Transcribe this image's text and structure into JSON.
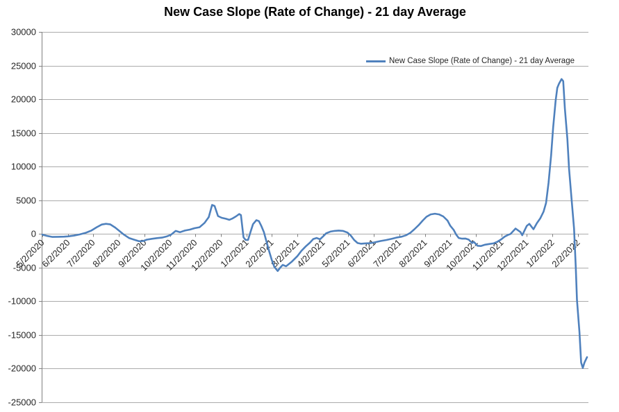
{
  "chart_data": {
    "type": "line",
    "title": "New Case Slope (Rate of Change) - 21 day Average",
    "grid": true,
    "legend_position": "top-right-inside",
    "x_axis": {
      "tick_labels": [
        "5/2/2020",
        "6/2/2020",
        "7/2/2020",
        "8/2/2020",
        "9/2/2020",
        "10/2/2020",
        "11/2/2020",
        "12/2/2020",
        "1/2/2021",
        "2/2/2021",
        "3/2/2021",
        "4/2/2021",
        "5/2/2021",
        "6/2/2021",
        "7/2/2021",
        "8/2/2021",
        "9/2/2021",
        "10/2/2021",
        "11/2/2021",
        "12/2/2021",
        "1/2/2022",
        "2/2/2022"
      ],
      "tick_dates": [
        "2020-05-02",
        "2020-06-02",
        "2020-07-02",
        "2020-08-02",
        "2020-09-02",
        "2020-10-02",
        "2020-11-02",
        "2020-12-02",
        "2021-01-02",
        "2021-02-02",
        "2021-03-02",
        "2021-04-02",
        "2021-05-02",
        "2021-06-02",
        "2021-07-02",
        "2021-08-02",
        "2021-09-02",
        "2021-10-02",
        "2021-11-02",
        "2021-12-02",
        "2022-01-02",
        "2022-02-02"
      ],
      "label_rotation_deg": 45
    },
    "y_axis": {
      "min": -25000,
      "max": 30000,
      "step": 5000,
      "tick_labels": [
        "30000",
        "25000",
        "20000",
        "15000",
        "10000",
        "5000",
        "0",
        "-5000",
        "-10000",
        "-15000",
        "-20000",
        "-25000"
      ],
      "tick_values": [
        30000,
        25000,
        20000,
        15000,
        10000,
        5000,
        0,
        -5000,
        -10000,
        -15000,
        -20000,
        -25000
      ]
    },
    "series": [
      {
        "name": "New Case Slope (Rate of Change) - 21 day Average",
        "color": "#4f81bd",
        "points": [
          [
            "2020-05-02",
            -100
          ],
          [
            "2020-05-08",
            -300
          ],
          [
            "2020-05-14",
            -450
          ],
          [
            "2020-05-21",
            -420
          ],
          [
            "2020-05-28",
            -400
          ],
          [
            "2020-06-02",
            -360
          ],
          [
            "2020-06-09",
            -250
          ],
          [
            "2020-06-16",
            -80
          ],
          [
            "2020-06-23",
            150
          ],
          [
            "2020-06-30",
            500
          ],
          [
            "2020-07-06",
            1000
          ],
          [
            "2020-07-12",
            1400
          ],
          [
            "2020-07-17",
            1500
          ],
          [
            "2020-07-22",
            1430
          ],
          [
            "2020-07-28",
            950
          ],
          [
            "2020-08-02",
            500
          ],
          [
            "2020-08-08",
            -100
          ],
          [
            "2020-08-14",
            -600
          ],
          [
            "2020-08-20",
            -850
          ],
          [
            "2020-08-26",
            -1080
          ],
          [
            "2020-08-31",
            -1050
          ],
          [
            "2020-09-05",
            -850
          ],
          [
            "2020-09-11",
            -720
          ],
          [
            "2020-09-17",
            -620
          ],
          [
            "2020-09-23",
            -550
          ],
          [
            "2020-09-29",
            -350
          ],
          [
            "2020-10-03",
            -150
          ],
          [
            "2020-10-09",
            450
          ],
          [
            "2020-10-14",
            250
          ],
          [
            "2020-10-20",
            500
          ],
          [
            "2020-10-26",
            650
          ],
          [
            "2020-11-01",
            850
          ],
          [
            "2020-11-07",
            1000
          ],
          [
            "2020-11-13",
            1650
          ],
          [
            "2020-11-18",
            2500
          ],
          [
            "2020-11-22",
            4300
          ],
          [
            "2020-11-25",
            4150
          ],
          [
            "2020-11-29",
            2650
          ],
          [
            "2020-12-03",
            2400
          ],
          [
            "2020-12-08",
            2250
          ],
          [
            "2020-12-12",
            2100
          ],
          [
            "2020-12-16",
            2300
          ],
          [
            "2020-12-20",
            2600
          ],
          [
            "2020-12-24",
            2950
          ],
          [
            "2020-12-26",
            2800
          ],
          [
            "2020-12-29",
            -500
          ],
          [
            "2021-01-01",
            -880
          ],
          [
            "2021-01-04",
            -900
          ],
          [
            "2021-01-07",
            300
          ],
          [
            "2021-01-10",
            1450
          ],
          [
            "2021-01-14",
            2050
          ],
          [
            "2021-01-17",
            1900
          ],
          [
            "2021-01-20",
            1150
          ],
          [
            "2021-01-23",
            250
          ],
          [
            "2021-01-26",
            -1100
          ],
          [
            "2021-01-29",
            -2500
          ],
          [
            "2021-02-02",
            -3900
          ],
          [
            "2021-02-05",
            -4900
          ],
          [
            "2021-02-09",
            -5500
          ],
          [
            "2021-02-12",
            -5000
          ],
          [
            "2021-02-15",
            -4600
          ],
          [
            "2021-02-19",
            -4800
          ],
          [
            "2021-02-22",
            -4500
          ],
          [
            "2021-02-26",
            -4100
          ],
          [
            "2021-03-02",
            -3300
          ],
          [
            "2021-03-07",
            -2500
          ],
          [
            "2021-03-12",
            -1850
          ],
          [
            "2021-03-17",
            -1300
          ],
          [
            "2021-03-21",
            -750
          ],
          [
            "2021-03-25",
            -600
          ],
          [
            "2021-03-29",
            -800
          ],
          [
            "2021-04-02",
            -400
          ],
          [
            "2021-04-06",
            100
          ],
          [
            "2021-04-11",
            350
          ],
          [
            "2021-04-16",
            450
          ],
          [
            "2021-04-21",
            500
          ],
          [
            "2021-04-26",
            450
          ],
          [
            "2021-05-01",
            200
          ],
          [
            "2021-05-05",
            -250
          ],
          [
            "2021-05-09",
            -900
          ],
          [
            "2021-05-13",
            -1350
          ],
          [
            "2021-05-17",
            -1450
          ],
          [
            "2021-05-22",
            -1400
          ],
          [
            "2021-05-28",
            -1370
          ],
          [
            "2021-06-03",
            -1250
          ],
          [
            "2021-06-10",
            -1050
          ],
          [
            "2021-06-17",
            -900
          ],
          [
            "2021-06-24",
            -700
          ],
          [
            "2021-06-30",
            -520
          ],
          [
            "2021-07-05",
            -400
          ],
          [
            "2021-07-10",
            -200
          ],
          [
            "2021-07-15",
            150
          ],
          [
            "2021-07-20",
            700
          ],
          [
            "2021-07-25",
            1300
          ],
          [
            "2021-07-30",
            2000
          ],
          [
            "2021-08-04",
            2550
          ],
          [
            "2021-08-09",
            2900
          ],
          [
            "2021-08-14",
            3000
          ],
          [
            "2021-08-19",
            2900
          ],
          [
            "2021-08-24",
            2600
          ],
          [
            "2021-08-29",
            2000
          ],
          [
            "2021-09-02",
            1200
          ],
          [
            "2021-09-06",
            600
          ],
          [
            "2021-09-09",
            -100
          ],
          [
            "2021-09-12",
            -600
          ],
          [
            "2021-09-16",
            -700
          ],
          [
            "2021-09-20",
            -680
          ],
          [
            "2021-09-24",
            -850
          ],
          [
            "2021-09-28",
            -1350
          ],
          [
            "2021-09-30",
            -1180
          ],
          [
            "2021-10-04",
            -1750
          ],
          [
            "2021-10-08",
            -1800
          ],
          [
            "2021-10-13",
            -1600
          ],
          [
            "2021-10-18",
            -1500
          ],
          [
            "2021-10-23",
            -1400
          ],
          [
            "2021-10-28",
            -1150
          ],
          [
            "2021-11-02",
            -800
          ],
          [
            "2021-11-06",
            -400
          ],
          [
            "2021-11-10",
            -150
          ],
          [
            "2021-11-13",
            0
          ],
          [
            "2021-11-19",
            800
          ],
          [
            "2021-11-25",
            260
          ],
          [
            "2021-11-27",
            -200
          ],
          [
            "2021-12-02",
            1200
          ],
          [
            "2021-12-05",
            1500
          ],
          [
            "2021-12-10",
            700
          ],
          [
            "2021-12-14",
            1600
          ],
          [
            "2021-12-18",
            2300
          ],
          [
            "2021-12-22",
            3300
          ],
          [
            "2021-12-25",
            4600
          ],
          [
            "2021-12-28",
            7600
          ],
          [
            "2021-12-31",
            11700
          ],
          [
            "2022-01-03",
            15800
          ],
          [
            "2022-01-06",
            19800
          ],
          [
            "2022-01-08",
            21700
          ],
          [
            "2022-01-10",
            22300
          ],
          [
            "2022-01-13",
            23000
          ],
          [
            "2022-01-15",
            22700
          ],
          [
            "2022-01-17",
            18600
          ],
          [
            "2022-01-20",
            14100
          ],
          [
            "2022-01-22",
            9700
          ],
          [
            "2022-01-25",
            5200
          ],
          [
            "2022-01-28",
            800
          ],
          [
            "2022-01-30",
            -5000
          ],
          [
            "2022-02-01",
            -9800
          ],
          [
            "2022-02-04",
            -14600
          ],
          [
            "2022-02-06",
            -19100
          ],
          [
            "2022-02-08",
            -19900
          ],
          [
            "2022-02-10",
            -19100
          ],
          [
            "2022-02-13",
            -18300
          ]
        ]
      }
    ]
  },
  "styles": {
    "series_color": "#4f81bd",
    "gridline_color": "#ababab",
    "axis_color": "#808080",
    "tick_label_color": "#262626",
    "title_color": "#000000",
    "background": "#ffffff"
  }
}
